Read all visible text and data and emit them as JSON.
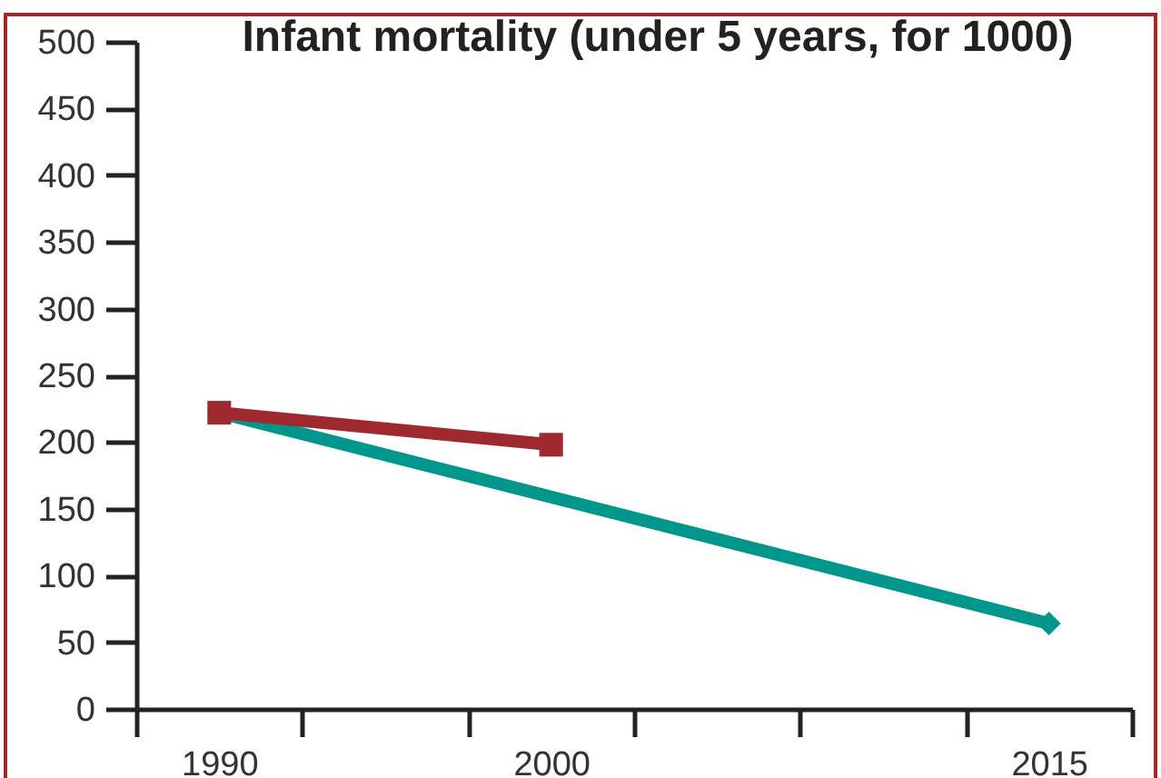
{
  "chart_data": {
    "type": "line",
    "title": "Infant mortality (under 5 years, for 1000)",
    "series": [
      {
        "color": "#00968c",
        "marker": "diamond",
        "x": [
          1990,
          2015
        ],
        "values": [
          222,
          64
        ]
      },
      {
        "color": "#9e2a2f",
        "marker": "square",
        "x": [
          1990,
          2000
        ],
        "values": [
          222,
          198
        ]
      }
    ],
    "xlim": [
      1987.5,
      2017.5
    ],
    "xticks": [
      {
        "value": 1987.5,
        "label": null
      },
      1990,
      {
        "value": 1992.5,
        "label": null
      },
      {
        "value": 1997.5,
        "label": null
      },
      2000,
      {
        "value": 2002.5,
        "label": null
      },
      {
        "value": 2007.5,
        "label": null
      },
      {
        "value": 2012.5,
        "label": null
      },
      2015,
      {
        "value": 2017.5,
        "label": null
      }
    ],
    "ylim": [
      0,
      500
    ],
    "yticks": [
      0,
      50,
      100,
      150,
      200,
      250,
      300,
      350,
      400,
      450,
      500
    ]
  }
}
